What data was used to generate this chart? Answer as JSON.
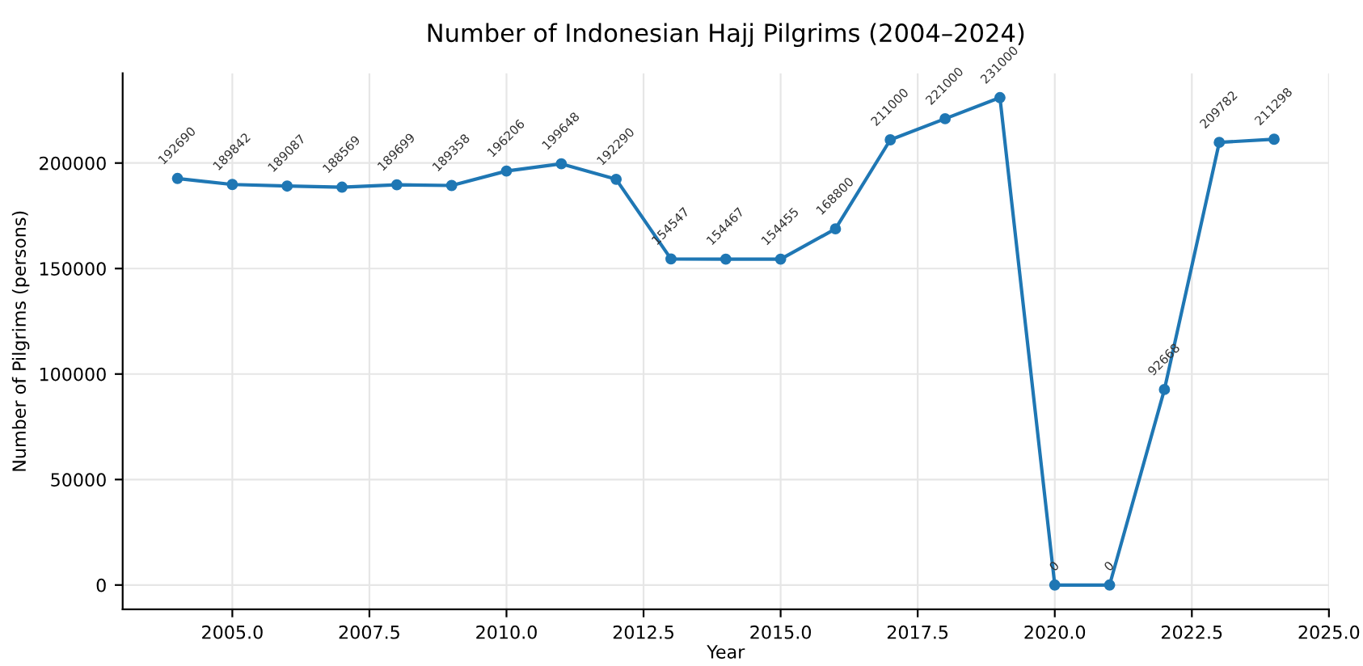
{
  "chart_data": {
    "type": "line",
    "title": "Number of Indonesian Hajj Pilgrims (2004–2024)",
    "xlabel": "Year",
    "ylabel": "Number of Pilgrims (persons)",
    "x": [
      2004,
      2005,
      2006,
      2007,
      2008,
      2009,
      2010,
      2011,
      2012,
      2013,
      2014,
      2015,
      2016,
      2017,
      2018,
      2019,
      2020,
      2021,
      2022,
      2023,
      2024
    ],
    "series": [
      {
        "color": "#1f77b4",
        "values": [
          192690,
          189842,
          189087,
          188569,
          189699,
          189358,
          196206,
          199648,
          192290,
          154547,
          154467,
          154455,
          168800,
          211000,
          221000,
          231000,
          0,
          0,
          92668,
          209782,
          211298
        ]
      }
    ],
    "data_labels": true,
    "marker": "circle",
    "line_style": "solid",
    "grid": true,
    "xlim": [
      2003,
      2025
    ],
    "xticks": [
      {
        "value": 2005,
        "label": "2005.0"
      },
      {
        "value": 2007.5,
        "label": "2007.5"
      },
      {
        "value": 2010,
        "label": "2010.0"
      },
      {
        "value": 2012.5,
        "label": "2012.5"
      },
      {
        "value": 2015,
        "label": "2015.0"
      },
      {
        "value": 2017.5,
        "label": "2017.5"
      },
      {
        "value": 2020,
        "label": "2020.0"
      },
      {
        "value": 2022.5,
        "label": "2022.5"
      },
      {
        "value": 2025,
        "label": "2025.0"
      }
    ],
    "ylim": [
      -11550,
      242550
    ],
    "yticks": [
      0,
      50000,
      100000,
      150000,
      200000
    ]
  }
}
